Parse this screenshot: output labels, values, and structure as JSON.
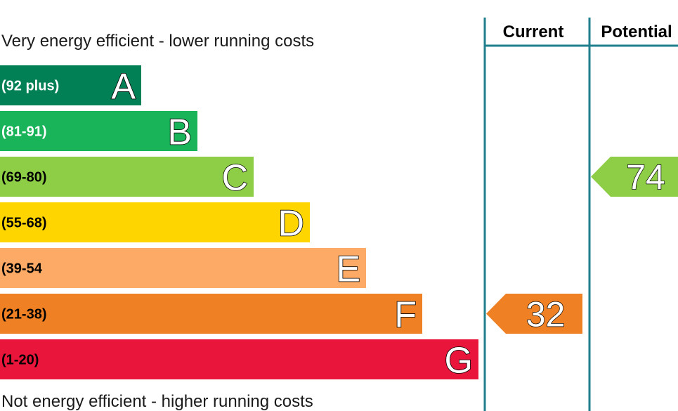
{
  "chart_data": {
    "type": "bar",
    "top_caption": "Very energy efficient - lower running costs",
    "bottom_caption": "Not energy efficient - higher running costs",
    "columns": [
      "Current",
      "Potential"
    ],
    "bands": [
      {
        "range": "(92 plus)",
        "letter": "A",
        "color": "#008054",
        "text_color": "#ffffff"
      },
      {
        "range": "(81-91)",
        "letter": "B",
        "color": "#19b459",
        "text_color": "#ffffff"
      },
      {
        "range": "(69-80)",
        "letter": "C",
        "color": "#8dce46",
        "text_color": "#000000"
      },
      {
        "range": "(55-68)",
        "letter": "D",
        "color": "#ffd500",
        "text_color": "#000000"
      },
      {
        "range": "(39-54",
        "letter": "E",
        "color": "#fcaa65",
        "text_color": "#000000"
      },
      {
        "range": "(21-38)",
        "letter": "F",
        "color": "#ef8023",
        "text_color": "#000000"
      },
      {
        "range": "(1-20)",
        "letter": "G",
        "color": "#e9153b",
        "text_color": "#000000"
      }
    ],
    "current": {
      "value": 32,
      "band": "F",
      "color": "#ef8023"
    },
    "potential": {
      "value": 74,
      "band": "C",
      "color": "#8dce46"
    },
    "frame_color": "#1f7f8c"
  }
}
